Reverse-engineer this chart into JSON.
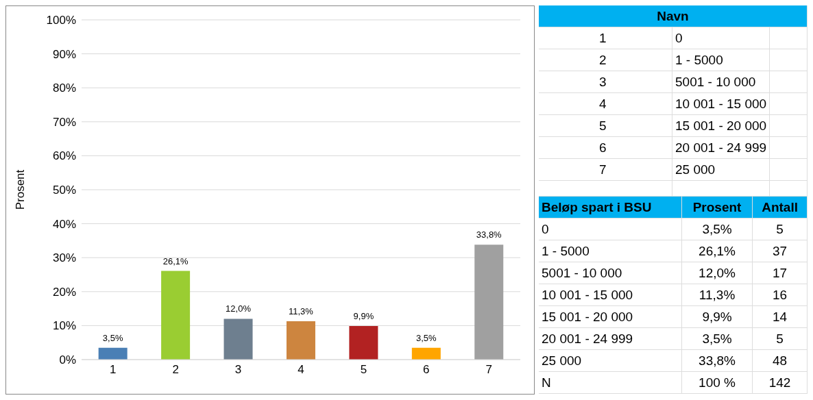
{
  "chart_data": {
    "type": "bar",
    "ylabel": "Prosent",
    "categories": [
      "1",
      "2",
      "3",
      "4",
      "5",
      "6",
      "7"
    ],
    "values": [
      3.5,
      26.1,
      12.0,
      11.3,
      9.9,
      3.5,
      33.8
    ],
    "colors": [
      "#4a7fb5",
      "#9acd32",
      "#6e7f8f",
      "#cd853f",
      "#b22222",
      "#ffa500",
      "#a0a0a0"
    ],
    "value_labels": [
      "3,5%",
      "26,1%",
      "12,0%",
      "11,3%",
      "9,9%",
      "3,5%",
      "33,8%"
    ],
    "ylim": [
      0,
      100
    ],
    "yticks": [
      {
        "value": 0,
        "label": "0%"
      },
      {
        "value": 10,
        "label": "10%"
      },
      {
        "value": 20,
        "label": "20%"
      },
      {
        "value": 30,
        "label": "30%"
      },
      {
        "value": 40,
        "label": "40%"
      },
      {
        "value": 50,
        "label": "50%"
      },
      {
        "value": 60,
        "label": "60%"
      },
      {
        "value": 70,
        "label": "70%"
      },
      {
        "value": 80,
        "label": "80%"
      },
      {
        "value": 90,
        "label": "90%"
      },
      {
        "value": 100,
        "label": "100%"
      }
    ],
    "grid": "y",
    "legend": false,
    "annotations": [
      "Navn",
      "1",
      "0",
      "2",
      "1 - 5000",
      "3",
      "5001 - 10 000",
      "4",
      "10 001 - 15 000",
      "5",
      "15 001 - 20 000",
      "6",
      "20 001 - 24 999",
      "7",
      "25 000",
      "Beløp spart i BSU",
      "Prosent",
      "Antall",
      "0",
      "3,5%",
      "5",
      "1 - 5000",
      "26,1%",
      "37",
      "5001 - 10 000",
      "12,0%",
      "17",
      "10 001 - 15 000",
      "11,3%",
      "16",
      "15 001 - 20 000",
      "9,9%",
      "14",
      "20 001 - 24 999",
      "3,5%",
      "5",
      "25 000",
      "33,8%",
      "48",
      "N",
      "100 %",
      "142"
    ]
  }
}
